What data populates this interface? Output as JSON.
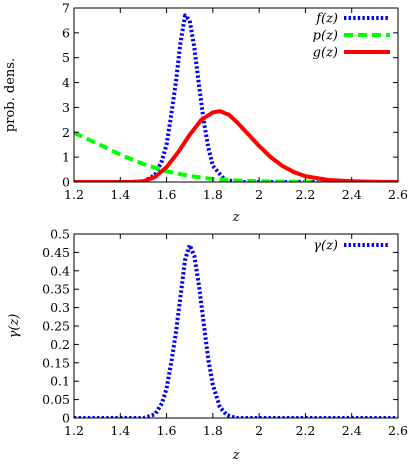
{
  "chart_data": [
    {
      "type": "line",
      "xlabel": "z",
      "ylabel": "prob. dens.",
      "xlim": [
        1.2,
        2.6
      ],
      "ylim": [
        0,
        7
      ],
      "xticks": [
        "1.2",
        "1.4",
        "1.6",
        "1.8",
        "2",
        "2.2",
        "2.4",
        "2.6"
      ],
      "yticks": [
        "0",
        "1",
        "2",
        "3",
        "4",
        "5",
        "6",
        "7"
      ],
      "grid": false,
      "legend_position": "top-right",
      "series": [
        {
          "name": "f(z)",
          "color": "#0000ff",
          "style": "dotted",
          "x": [
            1.2,
            1.45,
            1.5,
            1.55,
            1.58,
            1.6,
            1.62,
            1.64,
            1.66,
            1.68,
            1.7,
            1.72,
            1.74,
            1.76,
            1.78,
            1.8,
            1.85,
            1.9,
            2.6
          ],
          "y": [
            0,
            0,
            0.02,
            0.28,
            0.85,
            1.5,
            2.7,
            4.0,
            5.6,
            6.7,
            6.5,
            5.4,
            3.9,
            2.5,
            1.4,
            0.65,
            0.1,
            0,
            0
          ]
        },
        {
          "name": "p(z)",
          "color": "#00ff00",
          "style": "dashed",
          "x": [
            1.2,
            1.3,
            1.4,
            1.5,
            1.6,
            1.7,
            1.8,
            1.9,
            2.0,
            2.1,
            2.2,
            2.4,
            2.6
          ],
          "y": [
            1.98,
            1.55,
            1.1,
            0.72,
            0.43,
            0.24,
            0.12,
            0.06,
            0.03,
            0.015,
            0.008,
            0.003,
            0.001
          ]
        },
        {
          "name": "g(z)",
          "color": "#ff0000",
          "style": "solid",
          "x": [
            1.2,
            1.45,
            1.5,
            1.55,
            1.6,
            1.65,
            1.7,
            1.75,
            1.8,
            1.83,
            1.87,
            1.9,
            1.95,
            2.0,
            2.05,
            2.1,
            2.15,
            2.2,
            2.3,
            2.4,
            2.5,
            2.6
          ],
          "y": [
            0,
            0,
            0.03,
            0.2,
            0.6,
            1.2,
            1.9,
            2.5,
            2.8,
            2.85,
            2.7,
            2.45,
            1.95,
            1.45,
            1.0,
            0.65,
            0.4,
            0.23,
            0.08,
            0.03,
            0.01,
            0
          ]
        }
      ]
    },
    {
      "type": "line",
      "xlabel": "z",
      "ylabel": "γ(z)",
      "xlim": [
        1.2,
        2.6
      ],
      "ylim": [
        0,
        0.5
      ],
      "xticks": [
        "1.2",
        "1.4",
        "1.6",
        "1.8",
        "2",
        "2.2",
        "2.4",
        "2.6"
      ],
      "yticks": [
        "0",
        "0.05",
        "0.1",
        "0.15",
        "0.2",
        "0.25",
        "0.3",
        "0.35",
        "0.4",
        "0.45",
        "0.5"
      ],
      "grid": false,
      "legend_position": "top-right",
      "series": [
        {
          "name": "γ(z)",
          "color": "#0000ff",
          "style": "dotted",
          "x": [
            1.2,
            1.5,
            1.55,
            1.58,
            1.6,
            1.62,
            1.64,
            1.66,
            1.68,
            1.7,
            1.72,
            1.74,
            1.76,
            1.78,
            1.8,
            1.83,
            1.86,
            1.9,
            2.6
          ],
          "y": [
            0,
            0,
            0.01,
            0.04,
            0.08,
            0.15,
            0.23,
            0.33,
            0.43,
            0.47,
            0.44,
            0.36,
            0.26,
            0.16,
            0.09,
            0.03,
            0.008,
            0,
            0
          ]
        }
      ]
    }
  ]
}
